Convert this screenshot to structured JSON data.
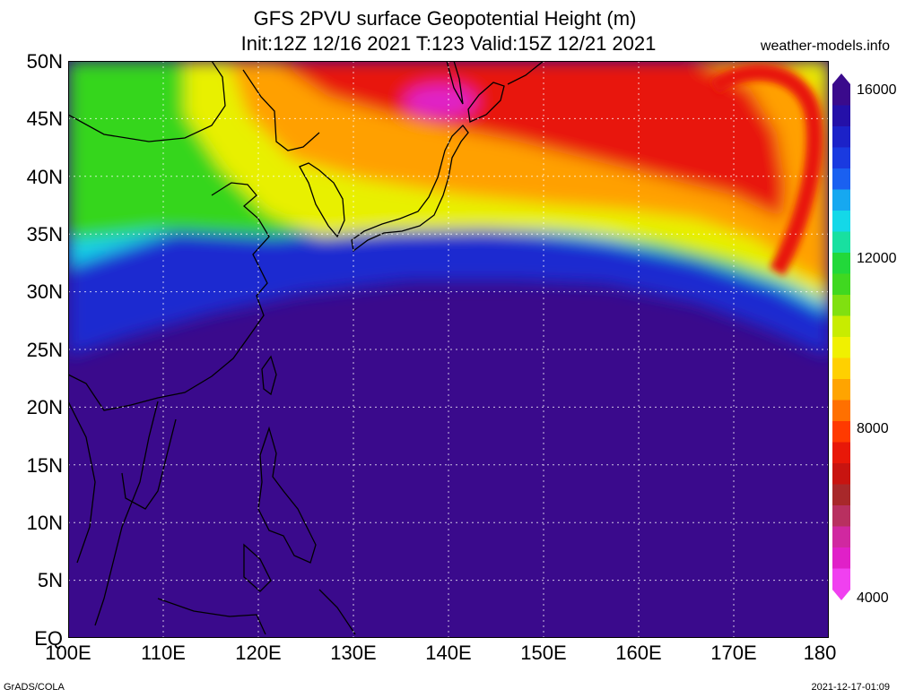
{
  "header": {
    "title_line1": "GFS 2PVU surface Geopotential Height (m)",
    "title_line2": "Init:12Z 12/16 2021 T:123 Valid:15Z 12/21 2021",
    "brand": "weather-models.info"
  },
  "map": {
    "lat_labels": [
      "50N",
      "45N",
      "40N",
      "35N",
      "30N",
      "25N",
      "20N",
      "15N",
      "10N",
      "5N",
      "EQ"
    ],
    "lon_labels": [
      "100E",
      "110E",
      "120E",
      "130E",
      "140E",
      "150E",
      "160E",
      "170E",
      "180"
    ],
    "colors": {
      "deep_ocean": "#3a0a8c",
      "blue": "#1a2ad0",
      "cyan": "#14d0e8",
      "green": "#34d61e",
      "yellow": "#e8f000",
      "orange": "#ffa000",
      "red": "#e81808",
      "magenta": "#e020c8",
      "land_outline": "#000000"
    }
  },
  "colorbar": {
    "labels": [
      "16000",
      "12000",
      "8000",
      "4000"
    ],
    "colors": [
      "#3a0a8c",
      "#2410a8",
      "#1c22c8",
      "#1a3ae0",
      "#1a60f0",
      "#16a8f0",
      "#14d8e8",
      "#18e0a0",
      "#22d83a",
      "#40d820",
      "#80e010",
      "#c8ec00",
      "#f0f000",
      "#ffd000",
      "#ffa400",
      "#ff7000",
      "#ff3a00",
      "#e81808",
      "#c81410",
      "#a8282a",
      "#b83060",
      "#d028a0",
      "#e020c8",
      "#f040f0"
    ]
  },
  "footer": {
    "credit": "GrADS/COLA",
    "timestamp": "2021-12-17-01:09"
  }
}
